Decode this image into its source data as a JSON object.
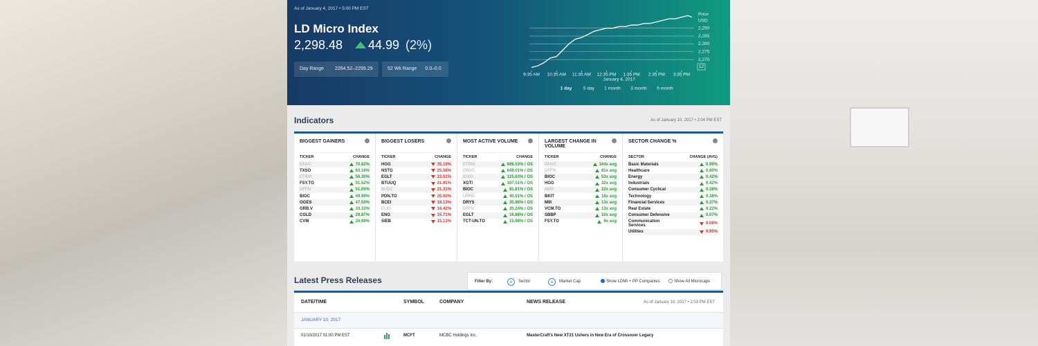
{
  "header": {
    "as_of": "As of January 4, 2017 • 5:00 PM EST",
    "title": "LD Micro Index",
    "price": "2,298.48",
    "change": "44.99",
    "change_pct": "(2%)",
    "day_range_label": "Day Range",
    "day_range": "2264.52–2299.29",
    "wk52_label": "52 Wk Range",
    "wk52": "0.0–0.0"
  },
  "chart": {
    "type": "line",
    "y_label_1": "Price",
    "y_label_2": "USD",
    "badge": "12",
    "date_label": "January 4, 2017",
    "color": "#ffffff",
    "x": [
      575,
      590,
      605,
      620,
      635,
      650,
      665,
      680,
      695,
      710,
      725,
      740,
      755,
      770,
      785,
      800,
      815,
      830,
      845,
      860,
      875,
      890,
      905,
      920,
      935,
      950,
      960
    ],
    "values": [
      2265,
      2266,
      2268,
      2271,
      2272,
      2276,
      2280,
      2283,
      2284,
      2286,
      2288,
      2289,
      2290,
      2290,
      2291,
      2291,
      2292,
      2292,
      2293,
      2293,
      2294,
      2295,
      2296,
      2296,
      2297,
      2298,
      2297
    ],
    "xlim": [
      570,
      965
    ],
    "xticks": [
      {
        "value": 575,
        "label": "9:35 AM"
      },
      {
        "value": 635,
        "label": "10:35 AM"
      },
      {
        "value": 695,
        "label": "11:35 AM"
      },
      {
        "value": 755,
        "label": "12:35 PM"
      },
      {
        "value": 815,
        "label": "1:35 PM"
      },
      {
        "value": 875,
        "label": "2:35 PM"
      },
      {
        "value": 935,
        "label": "3:35 PM"
      }
    ],
    "ylim": [
      2263,
      2300
    ],
    "yticks": [
      {
        "value": 2270,
        "label": "2,270"
      },
      {
        "value": 2275,
        "label": "2,275"
      },
      {
        "value": 2280,
        "label": "2,280"
      },
      {
        "value": 2285,
        "label": "2,285"
      },
      {
        "value": 2290,
        "label": "2,290"
      }
    ],
    "grid": true,
    "ranges": [
      "1 day",
      "5 day",
      "1 month",
      "3 month",
      "6 month"
    ],
    "active_range": 0
  },
  "indicators": {
    "title": "Indicators",
    "as_of": "As of January 10, 2017 • 2:04 PM EST",
    "columns": [
      {
        "title": "BIGGEST GAINERS",
        "headers": [
          "TICKER",
          "CHANGE"
        ],
        "dimmed": [
          0,
          2,
          4
        ],
        "rows": [
          [
            "GNVC",
            "70.82%",
            "up"
          ],
          [
            "TXSO",
            "63.16%",
            "up"
          ],
          [
            "ETRM",
            "56.30%",
            "up"
          ],
          [
            "FSY.TO",
            "51.52%",
            "up"
          ],
          [
            "DFFN",
            "51.05%",
            "up"
          ],
          [
            "BIOC",
            "49.99%",
            "up"
          ],
          [
            "OGES",
            "47.50%",
            "up"
          ],
          [
            "GRB.V",
            "33.33%",
            "up"
          ],
          [
            "CGLD",
            "29.87%",
            "up"
          ],
          [
            "CVM",
            "26.99%",
            "up"
          ]
        ]
      },
      {
        "title": "BIGGEST LOSERS",
        "headers": [
          "TICKER",
          "CHANGE"
        ],
        "dimmed": [
          4,
          7
        ],
        "rows": [
          [
            "HGG",
            "35.19%",
            "down"
          ],
          [
            "NSTG",
            "25.58%",
            "down"
          ],
          [
            "EGLT",
            "23.51%",
            "down"
          ],
          [
            "BTUUQ",
            "21.91%",
            "down"
          ],
          [
            "BUDZ",
            "21.31%",
            "down"
          ],
          [
            "PDN.TO",
            "20.00%",
            "down"
          ],
          [
            "BCEI",
            "18.13%",
            "down"
          ],
          [
            "ELIO",
            "16.42%",
            "down"
          ],
          [
            "ENG",
            "15.71%",
            "down"
          ],
          [
            "SIEB",
            "15.13%",
            "down"
          ]
        ]
      },
      {
        "title": "MOST ACTIVE VOLUME",
        "headers": [
          "TICKER",
          "CHANGE"
        ],
        "dimmed": [
          0,
          1,
          2,
          5,
          7
        ],
        "rows": [
          [
            "ETRM",
            "896.53% / OS",
            "up"
          ],
          [
            "GNVC",
            "649.01% / OS",
            "up"
          ],
          [
            "IDXG",
            "125.63% / OS",
            "up"
          ],
          [
            "XGTI",
            "107.51% / OS",
            "up"
          ],
          [
            "BIOC",
            "81.81% / OS",
            "up"
          ],
          [
            "URRE",
            "40.01% / OS",
            "up"
          ],
          [
            "DRYS",
            "35.98% / OS",
            "up"
          ],
          [
            "DFFN",
            "20.24% / OS",
            "up"
          ],
          [
            "EGLT",
            "16.88% / OS",
            "up"
          ],
          [
            "TCT-UN.TO",
            "15.98% / OS",
            "up"
          ]
        ]
      },
      {
        "title": "LARGEST CHANGE IN VOLUME",
        "headers": [
          "TICKER",
          "CHANGE"
        ],
        "dimmed": [
          0,
          1,
          4
        ],
        "rows": [
          [
            "GNVC",
            "164x avg",
            "up"
          ],
          [
            "DFFN",
            "81x avg",
            "up"
          ],
          [
            "BIOC",
            "53x avg",
            "up"
          ],
          [
            "HGG",
            "32x avg",
            "up"
          ],
          [
            "AMS",
            "22x avg",
            "up"
          ],
          [
            "BKIT",
            "18x avg",
            "up"
          ],
          [
            "MIII",
            "13x avg",
            "up"
          ],
          [
            "VCM.TO",
            "13x avg",
            "up"
          ],
          [
            "SBBP",
            "10x avg",
            "up"
          ],
          [
            "FSY.TO",
            "9x avg",
            "up"
          ]
        ]
      },
      {
        "title": "SECTOR CHANGE %",
        "headers": [
          "SECTOR",
          "CHANGE (AVG)"
        ],
        "dimmed": [],
        "rows": [
          [
            "Basic Materials",
            "0.99%",
            "up"
          ],
          [
            "Healthcare",
            "0.80%",
            "up"
          ],
          [
            "Energy",
            "0.42%",
            "up"
          ],
          [
            "Industrials",
            "0.42%",
            "up"
          ],
          [
            "Consumer Cyclical",
            "0.38%",
            "up"
          ],
          [
            "Technology",
            "0.38%",
            "up"
          ],
          [
            "Financial Services",
            "0.37%",
            "up"
          ],
          [
            "Real Estate",
            "0.22%",
            "up"
          ],
          [
            "Consumer Defensive",
            "0.07%",
            "up"
          ],
          [
            "Communication Services",
            "0.08%",
            "down"
          ],
          [
            "Utilities",
            "0.95%",
            "down"
          ]
        ]
      }
    ]
  },
  "press": {
    "title": "Latest Press Releases",
    "filter_label": "Filter By:",
    "filter_sector": "Sector",
    "filter_cap": "Market Cap",
    "option_ldmi": "Show LDMI + PP Companies",
    "option_all": "Show All Microcaps",
    "headers": [
      "DATE/TIME",
      "SYMBOL",
      "COMPANY",
      "NEWS RELEASE"
    ],
    "as_of": "As of January 10, 2017 • 2:03 PM EST",
    "group": "JANUARY 10, 2017",
    "rows": [
      [
        "01/10/2017 01:00 PM EST",
        "MCFT",
        "MCBC Holdings Inc.",
        "MasterCraft's New XT21 Ushers in New Era of Crossover Legacy"
      ]
    ]
  }
}
